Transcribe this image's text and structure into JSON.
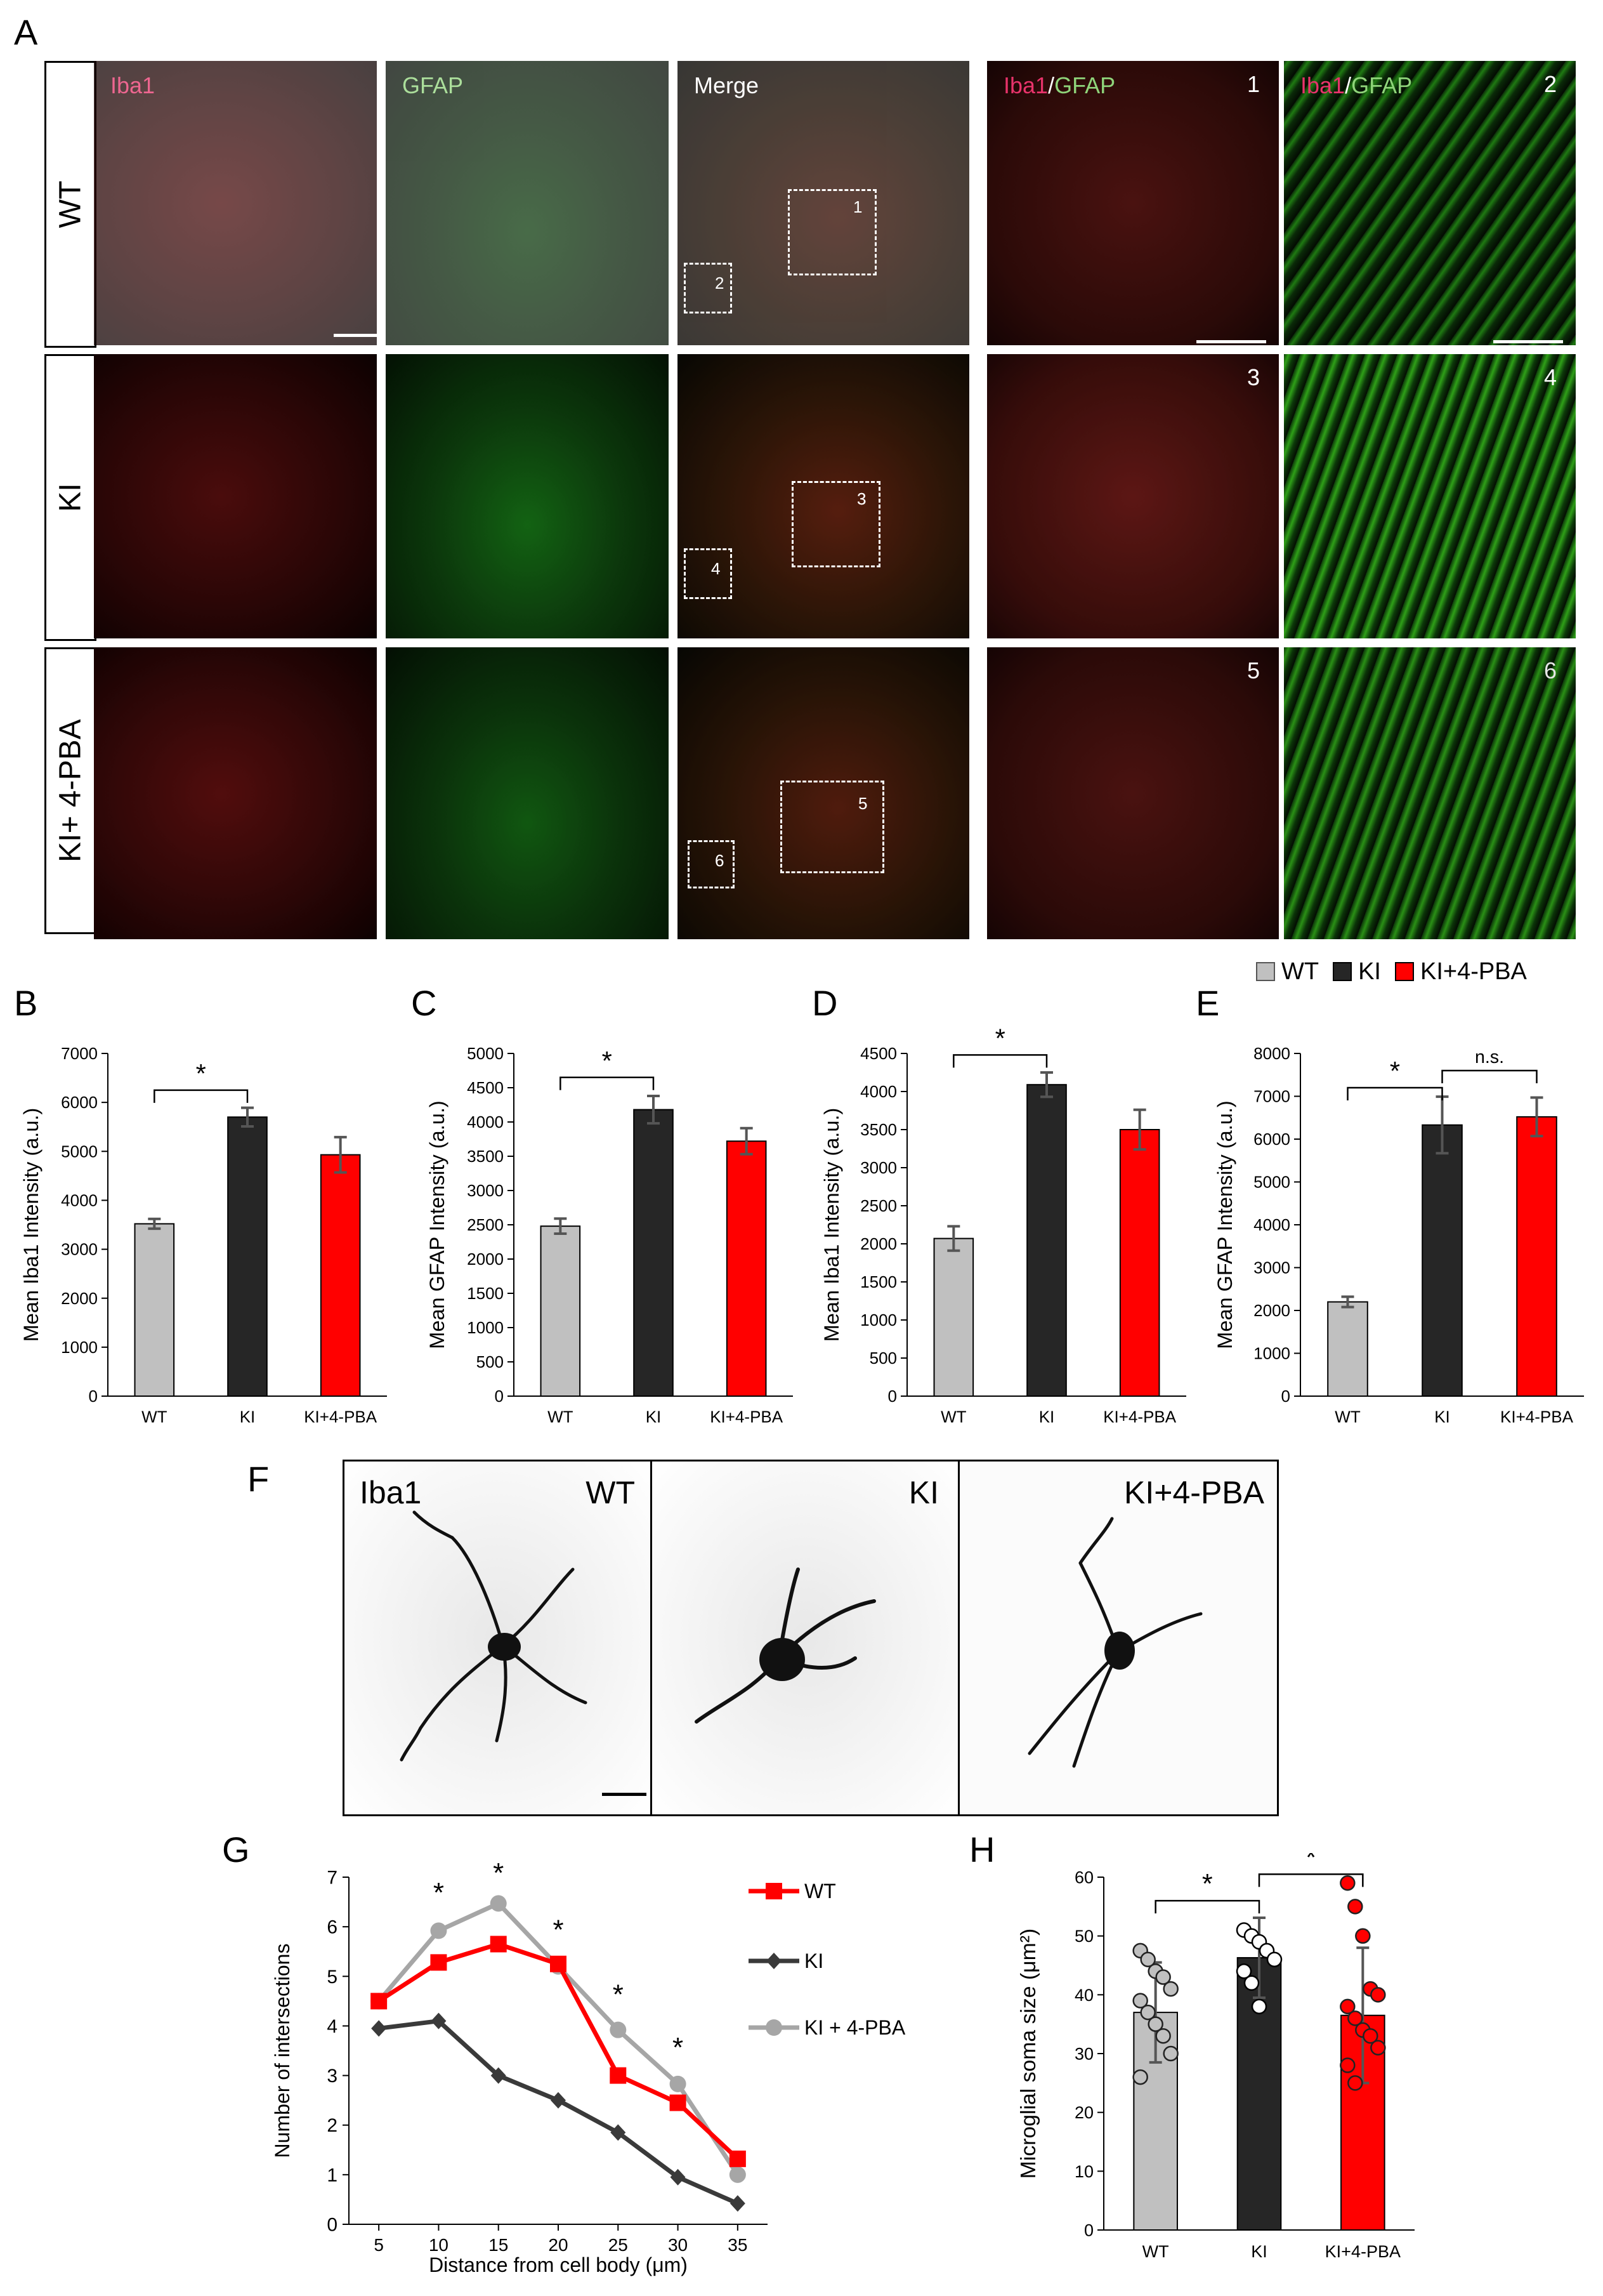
{
  "panel_letters": {
    "A": "A",
    "B": "B",
    "C": "C",
    "D": "D",
    "E": "E",
    "F": "F",
    "G": "G",
    "H": "H"
  },
  "panelA": {
    "rows": [
      "WT",
      "KI",
      "KI+ 4-PBA"
    ],
    "col_labels": {
      "iba1": "Iba1",
      "gfap": "GFAP",
      "merge": "Merge",
      "slash": "/"
    },
    "zoom_numbers": [
      "1",
      "2",
      "3",
      "4",
      "5",
      "6"
    ],
    "colors": {
      "iba1_label": "#e8336b",
      "gfap_label": "#8fd47a"
    }
  },
  "legend": {
    "items": [
      {
        "label": "WT",
        "color": "#c0c0c0"
      },
      {
        "label": "KI",
        "color": "#262626"
      },
      {
        "label": "KI+4-PBA",
        "color": "#ff0000"
      }
    ]
  },
  "chart_data": [
    {
      "id": "B",
      "type": "bar",
      "categories": [
        "WT",
        "KI",
        "KI+4-PBA"
      ],
      "values": [
        3520,
        5700,
        4930
      ],
      "errors": [
        100,
        190,
        360
      ],
      "colors": [
        "#c0c0c0",
        "#262626",
        "#ff0000"
      ],
      "ylabel": "Mean Iba1 Intensity (a.u.)",
      "ylim": [
        0,
        7000
      ],
      "yticks": [
        0,
        1000,
        2000,
        3000,
        4000,
        5000,
        6000,
        7000
      ],
      "significance": [
        {
          "from": 0,
          "to": 1,
          "label": "*"
        }
      ]
    },
    {
      "id": "C",
      "type": "bar",
      "categories": [
        "WT",
        "KI",
        "KI+4-PBA"
      ],
      "values": [
        2480,
        4180,
        3720
      ],
      "errors": [
        110,
        200,
        190
      ],
      "colors": [
        "#c0c0c0",
        "#262626",
        "#ff0000"
      ],
      "ylabel": "Mean GFAP Intensity (a.u.)",
      "ylim": [
        0,
        5000
      ],
      "yticks": [
        0,
        500,
        1000,
        1500,
        2000,
        2500,
        3000,
        3500,
        4000,
        4500,
        5000
      ],
      "significance": [
        {
          "from": 0,
          "to": 1,
          "label": "*"
        }
      ]
    },
    {
      "id": "D",
      "type": "bar",
      "categories": [
        "WT",
        "KI",
        "KI+4-PBA"
      ],
      "values": [
        2070,
        4090,
        3500
      ],
      "errors": [
        160,
        160,
        260
      ],
      "colors": [
        "#c0c0c0",
        "#262626",
        "#ff0000"
      ],
      "ylabel": "Mean Iba1 Intensity (a.u.)",
      "ylim": [
        0,
        4500
      ],
      "yticks": [
        0,
        500,
        1000,
        1500,
        2000,
        2500,
        3000,
        3500,
        4000,
        4500
      ],
      "significance": [
        {
          "from": 0,
          "to": 1,
          "label": "*"
        }
      ]
    },
    {
      "id": "E",
      "type": "bar",
      "categories": [
        "WT",
        "KI",
        "KI+4-PBA"
      ],
      "values": [
        2200,
        6330,
        6520
      ],
      "errors": [
        120,
        660,
        450
      ],
      "colors": [
        "#c0c0c0",
        "#262626",
        "#ff0000"
      ],
      "ylabel": "Mean GFAP Intensity (a.u.)",
      "ylim": [
        0,
        8000
      ],
      "yticks": [
        0,
        1000,
        2000,
        3000,
        4000,
        5000,
        6000,
        7000,
        8000
      ],
      "significance": [
        {
          "from": 0,
          "to": 1,
          "label": "*"
        },
        {
          "from": 1,
          "to": 2,
          "label": "n.s."
        }
      ]
    },
    {
      "id": "G",
      "type": "line",
      "x": [
        5,
        10,
        15,
        20,
        25,
        30,
        35
      ],
      "xlabel": "Distance from cell body (μm)",
      "ylabel": "Number of intersections",
      "ylim": [
        0,
        7
      ],
      "yticks": [
        0,
        1,
        2,
        3,
        4,
        5,
        6,
        7
      ],
      "series": [
        {
          "name": "WT",
          "color": "#ff0000",
          "marker": "square",
          "values": [
            4.5,
            5.28,
            5.65,
            5.25,
            3.0,
            2.45,
            1.32
          ]
        },
        {
          "name": "KI",
          "color": "#3a3a3a",
          "marker": "diamond",
          "values": [
            3.95,
            4.1,
            3.0,
            2.5,
            1.85,
            0.95,
            0.42
          ]
        },
        {
          "name": "KI + 4-PBA",
          "color": "#a6a6a6",
          "marker": "circle",
          "values": [
            4.5,
            5.92,
            6.47,
            5.2,
            3.92,
            2.83,
            1.0
          ]
        }
      ],
      "stars": [
        {
          "x": 10,
          "y": 6.5
        },
        {
          "x": 15,
          "y": 6.9
        },
        {
          "x": 20,
          "y": 5.75
        },
        {
          "x": 25,
          "y": 4.45
        },
        {
          "x": 30,
          "y": 3.38
        }
      ],
      "star_label": "*"
    },
    {
      "id": "H",
      "type": "bar",
      "categories": [
        "WT",
        "KI",
        "KI+4-PBA"
      ],
      "values": [
        37,
        46.3,
        36.5
      ],
      "errors": [
        8.5,
        6.8,
        11.5
      ],
      "colors": [
        "#c0c0c0",
        "#262626",
        "#ff0000"
      ],
      "ylabel": "Microglial soma size (μm²)",
      "ylim": [
        0,
        60
      ],
      "yticks": [
        0,
        10,
        20,
        30,
        40,
        50,
        60
      ],
      "points": [
        [
          47.5,
          46,
          44,
          43,
          41,
          39,
          37,
          35,
          33,
          30,
          26
        ],
        [
          51,
          50,
          49,
          47.5,
          46,
          44,
          42,
          38
        ],
        [
          59,
          55,
          50,
          41,
          40,
          38,
          36,
          34,
          33,
          31,
          28,
          25
        ]
      ],
      "significance": [
        {
          "from": 0,
          "to": 1,
          "label": "*"
        },
        {
          "from": 1,
          "to": 2,
          "label": "*"
        }
      ]
    }
  ],
  "panelF": {
    "stain": "Iba1",
    "labels": [
      "WT",
      "KI",
      "KI+4-PBA"
    ]
  }
}
